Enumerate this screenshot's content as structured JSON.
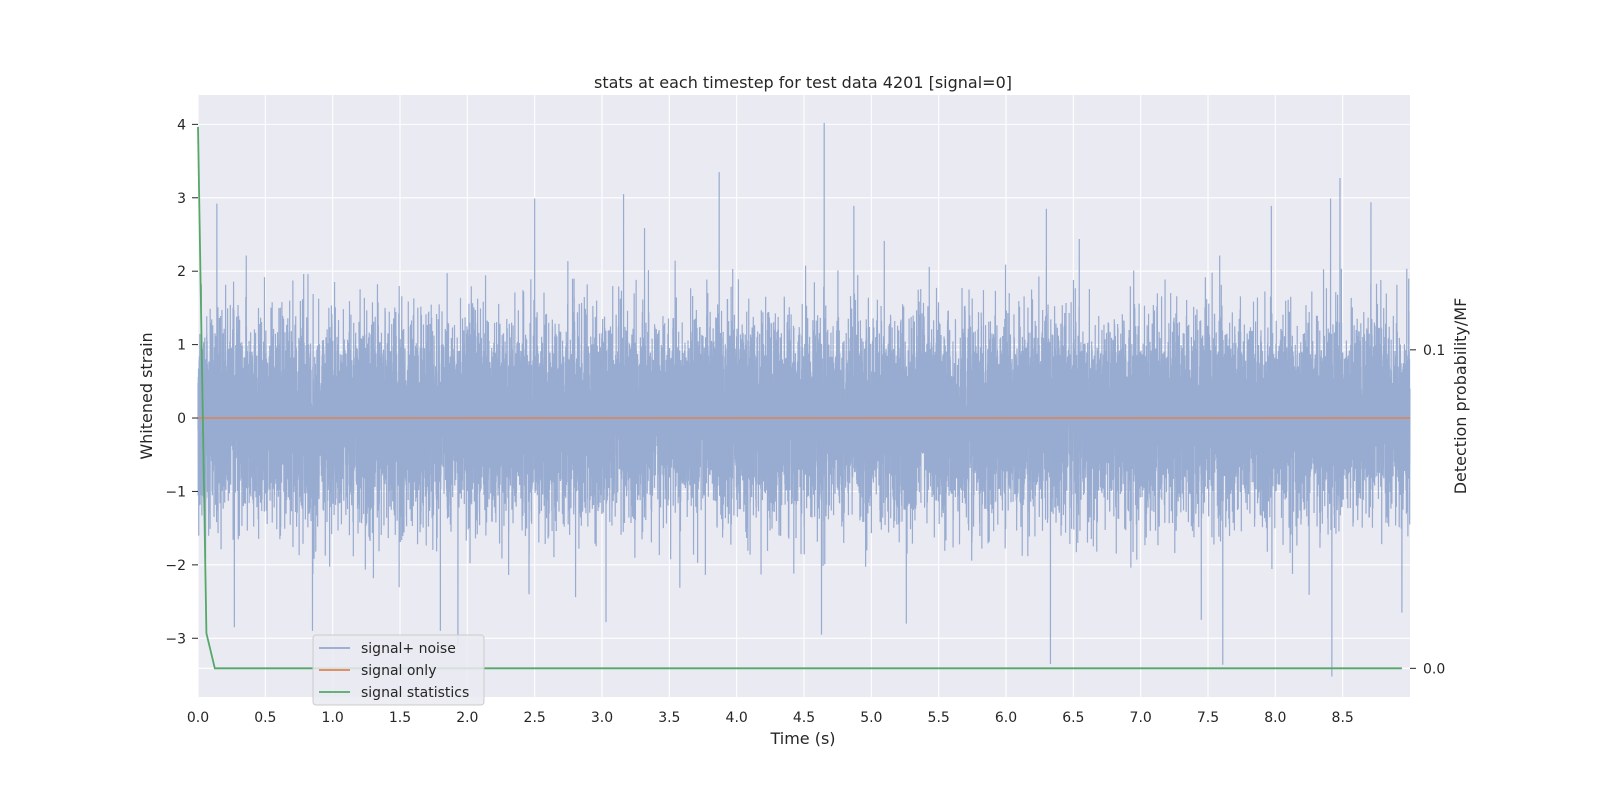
{
  "chart_data": {
    "type": "line",
    "title": "stats at each timestep for test data 4201 [signal=0]",
    "xlabel": "Time (s)",
    "ylabel": "Whitened strain",
    "y2label": "Detection probability/MF",
    "xlim": [
      0.0,
      9.0
    ],
    "ylim": [
      -3.8,
      4.4
    ],
    "y2lim": [
      -0.009,
      0.18
    ],
    "x_ticks": [
      "0.0",
      "0.5",
      "1.0",
      "1.5",
      "2.0",
      "2.5",
      "3.0",
      "3.5",
      "4.0",
      "4.5",
      "5.0",
      "5.5",
      "6.0",
      "6.5",
      "7.0",
      "7.5",
      "8.0",
      "8.5"
    ],
    "y_ticks": [
      "4",
      "3",
      "2",
      "1",
      "0",
      "−1",
      "−2",
      "−3"
    ],
    "y2_ticks": [
      "0.1",
      "0.0"
    ],
    "grid": true,
    "legend_position": "lower-left",
    "series": [
      {
        "name": "signal+ noise",
        "axis": "left",
        "color": "#94a8cd",
        "sample_rate_hz": 2048,
        "noise_std": 0.65,
        "peaks": [
          {
            "x": 4.65,
            "y": 4.02
          },
          {
            "x": 3.87,
            "y": 3.35
          },
          {
            "x": 8.48,
            "y": 3.27
          },
          {
            "x": 3.16,
            "y": 3.05
          },
          {
            "x": 8.41,
            "y": 2.99
          },
          {
            "x": 2.5,
            "y": 2.99
          },
          {
            "x": 0.14,
            "y": 2.92
          },
          {
            "x": 4.87,
            "y": 2.89
          },
          {
            "x": 6.3,
            "y": 2.85
          },
          {
            "x": 7.97,
            "y": 2.89
          },
          {
            "x": 8.71,
            "y": 2.94
          },
          {
            "x": 1.93,
            "y": -3.1
          },
          {
            "x": 8.42,
            "y": -3.52
          },
          {
            "x": 6.33,
            "y": -3.35
          },
          {
            "x": 7.61,
            "y": -3.36
          },
          {
            "x": 4.63,
            "y": -2.95
          },
          {
            "x": 0.85,
            "y": -2.9
          },
          {
            "x": 1.8,
            "y": -2.9
          },
          {
            "x": 0.27,
            "y": -2.85
          },
          {
            "x": 3.03,
            "y": -2.78
          },
          {
            "x": 5.26,
            "y": -2.8
          },
          {
            "x": 8.94,
            "y": -2.65
          },
          {
            "x": 7.45,
            "y": -2.75
          }
        ]
      },
      {
        "name": "signal only",
        "axis": "left",
        "color": "#dd8452",
        "x": [
          0.0,
          9.0
        ],
        "y": [
          0.0,
          0.0
        ]
      },
      {
        "name": "signal statistics",
        "axis": "right",
        "color": "#55a868",
        "x": [
          0.0,
          0.0625,
          0.125,
          0.25,
          1.0,
          2.0,
          3.0,
          4.0,
          5.0,
          6.0,
          7.0,
          8.0,
          8.94
        ],
        "y": [
          0.17,
          0.011,
          0.0,
          0.0,
          0.0,
          0.0,
          0.0,
          0.0,
          0.0,
          0.0,
          0.0,
          0.0,
          0.0
        ]
      }
    ]
  }
}
